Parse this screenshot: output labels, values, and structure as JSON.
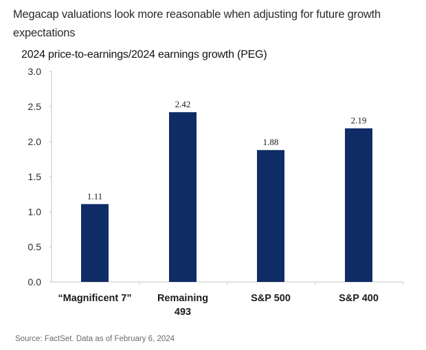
{
  "chart_data": {
    "type": "bar",
    "title": "Megacap valuations look more reasonable when adjusting for future growth expectations",
    "subtitle": "2024 price-to-earnings/2024 earnings growth (PEG)",
    "xlabel": "",
    "ylabel": "",
    "categories": [
      "“Magnificent 7”",
      "Remaining 493",
      "S&P 500",
      "S&P 400"
    ],
    "category_lines": [
      [
        "“Magnificent 7”"
      ],
      [
        "Remaining",
        "493"
      ],
      [
        "S&P 500"
      ],
      [
        "S&P 400"
      ]
    ],
    "values": [
      1.11,
      2.42,
      1.88,
      2.19
    ],
    "data_labels": [
      "1.11",
      "2.42",
      "1.88",
      "2.19"
    ],
    "ylim": [
      0,
      3.0
    ],
    "yticks": [
      0.0,
      0.5,
      1.0,
      1.5,
      2.0,
      2.5,
      3.0
    ],
    "ytick_labels": [
      "0.0",
      "0.5",
      "1.0",
      "1.5",
      "2.0",
      "2.5",
      "3.0"
    ],
    "grid": false,
    "legend": "none",
    "bar_color": "#0f2c66",
    "source": "Source: FactSet. Data as of February 6, 2024"
  }
}
